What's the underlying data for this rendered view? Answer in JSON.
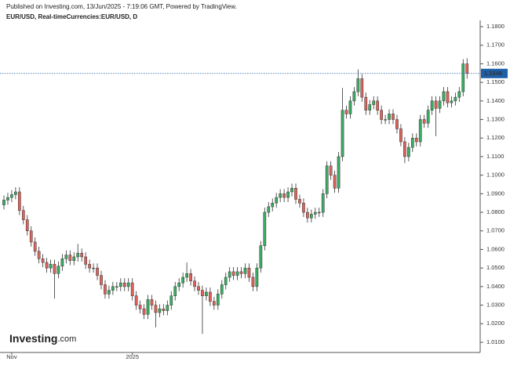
{
  "chart_data": {
    "type": "candlestick",
    "header": "Published on Investing.com, 13/Jun/2025 - 7:19:06 GMT, Powered by TradingView.",
    "title": "EUR/USD, Real-timeCurrencies:EUR/USD, D",
    "logo": {
      "brand": "Investing",
      "suffix": ".com"
    },
    "up_color": "#3aae63",
    "down_color": "#e0625a",
    "outline_color": "#333333",
    "price_line": {
      "value": 1.1548,
      "label": "1.1548",
      "color": "#1f5fa8"
    },
    "ylim": [
      1.0045,
      1.1834
    ],
    "yticks": [
      {
        "value": 1.01,
        "label": "1.0100"
      },
      {
        "value": 1.02,
        "label": "1.0200"
      },
      {
        "value": 1.03,
        "label": "1.0300"
      },
      {
        "value": 1.04,
        "label": "1.0400"
      },
      {
        "value": 1.05,
        "label": "1.0500"
      },
      {
        "value": 1.06,
        "label": "1.0600"
      },
      {
        "value": 1.07,
        "label": "1.0700"
      },
      {
        "value": 1.08,
        "label": "1.0800"
      },
      {
        "value": 1.09,
        "label": "1.0900"
      },
      {
        "value": 1.1,
        "label": "1.1000"
      },
      {
        "value": 1.11,
        "label": "1.1100"
      },
      {
        "value": 1.12,
        "label": "1.1200"
      },
      {
        "value": 1.13,
        "label": "1.1300"
      },
      {
        "value": 1.14,
        "label": "1.1400"
      },
      {
        "value": 1.15,
        "label": "1.1500"
      },
      {
        "value": 1.16,
        "label": "1.1600"
      },
      {
        "value": 1.17,
        "label": "1.1700"
      },
      {
        "value": 1.18,
        "label": "1.1800"
      }
    ],
    "categories": [
      null,
      null,
      "Nov",
      null,
      null,
      null,
      null,
      null,
      null,
      null,
      null,
      null,
      null,
      null,
      null,
      null,
      null,
      null,
      null,
      null,
      null,
      null,
      null,
      null,
      null,
      null,
      null,
      null,
      null,
      null,
      null,
      null,
      null,
      "2025",
      null,
      null,
      null,
      null,
      null,
      null,
      null,
      null,
      null,
      null,
      null,
      null,
      null,
      null,
      null,
      null,
      null,
      null,
      null,
      null,
      null,
      null,
      null,
      null,
      null,
      null,
      null,
      null,
      null,
      null,
      null,
      null,
      null,
      null,
      null,
      null,
      null,
      null,
      null,
      null,
      null,
      null,
      null,
      null,
      null,
      null,
      null,
      null,
      null,
      null,
      null,
      null,
      null,
      null,
      null,
      null,
      null,
      null,
      null,
      null,
      null,
      null,
      null,
      null,
      null,
      null,
      null,
      null,
      null,
      null,
      null,
      null,
      null,
      null,
      null,
      null,
      null,
      null,
      null,
      null,
      null,
      null,
      null,
      null,
      null,
      null
    ],
    "open": [
      1.084,
      1.0866,
      1.088,
      1.0895,
      1.091,
      1.081,
      1.076,
      1.07,
      1.064,
      1.059,
      1.055,
      1.053,
      1.05,
      1.052,
      1.047,
      1.051,
      1.055,
      1.057,
      1.054,
      1.056,
      1.058,
      1.056,
      1.052,
      1.05,
      1.05,
      1.046,
      1.041,
      1.036,
      1.038,
      1.04,
      1.04,
      1.042,
      1.04,
      1.042,
      1.035,
      1.03,
      1.028,
      1.025,
      1.033,
      1.03,
      1.026,
      1.028,
      1.027,
      1.03,
      1.035,
      1.04,
      1.042,
      1.045,
      1.047,
      1.043,
      1.04,
      1.038,
      1.035,
      1.037,
      1.032,
      1.03,
      1.036,
      1.041,
      1.045,
      1.048,
      1.046,
      1.048,
      1.047,
      1.05,
      1.045,
      1.04,
      1.05,
      1.062,
      1.08,
      1.083,
      1.085,
      1.088,
      1.09,
      1.088,
      1.091,
      1.093,
      1.087,
      1.085,
      1.08,
      1.077,
      1.079,
      1.08,
      1.08,
      1.09,
      1.105,
      1.1,
      1.093,
      1.11,
      1.135,
      1.133,
      1.14,
      1.145,
      1.152,
      1.142,
      1.135,
      1.138,
      1.14,
      1.135,
      1.13,
      1.13,
      1.133,
      1.13,
      1.125,
      1.118,
      1.11,
      1.115,
      1.12,
      1.118,
      1.13,
      1.128,
      1.135,
      1.14,
      1.136,
      1.14,
      1.145,
      1.139,
      1.14,
      1.142,
      1.145,
      1.16
    ],
    "high": [
      1.0891,
      1.0905,
      1.092,
      1.0935,
      1.0935,
      1.0835,
      1.0785,
      1.0725,
      1.0665,
      1.0615,
      1.0575,
      1.0555,
      1.0545,
      1.0545,
      1.0535,
      1.0575,
      1.0595,
      1.0595,
      1.0585,
      1.063,
      1.0605,
      1.0585,
      1.0545,
      1.0525,
      1.0525,
      1.0485,
      1.0435,
      1.0405,
      1.0425,
      1.0425,
      1.0445,
      1.0445,
      1.0445,
      1.0445,
      1.0375,
      1.0325,
      1.0305,
      1.0355,
      1.0355,
      1.0325,
      1.0305,
      1.0305,
      1.0325,
      1.0375,
      1.0425,
      1.0445,
      1.0475,
      1.053,
      1.0495,
      1.0455,
      1.0425,
      1.0405,
      1.0395,
      1.0395,
      1.0345,
      1.0385,
      1.0435,
      1.0475,
      1.0505,
      1.0505,
      1.0505,
      1.0505,
      1.0525,
      1.0525,
      1.0475,
      1.0525,
      1.0645,
      1.0825,
      1.0855,
      1.0875,
      1.0905,
      1.0925,
      1.0925,
      1.0935,
      1.0955,
      1.0955,
      1.0895,
      1.0875,
      1.0825,
      1.0815,
      1.0825,
      1.0825,
      1.0925,
      1.1075,
      1.1075,
      1.1025,
      1.1125,
      1.147,
      1.1375,
      1.1425,
      1.1475,
      1.157,
      1.1545,
      1.1445,
      1.1405,
      1.1425,
      1.1425,
      1.1375,
      1.1325,
      1.1355,
      1.1355,
      1.1325,
      1.1275,
      1.1205,
      1.1175,
      1.1225,
      1.1225,
      1.1325,
      1.1325,
      1.1375,
      1.1425,
      1.1425,
      1.1425,
      1.1475,
      1.1475,
      1.1425,
      1.1445,
      1.1475,
      1.1625,
      1.163
    ],
    "low": [
      1.0815,
      1.0841,
      1.0855,
      1.087,
      1.0785,
      1.0735,
      1.0675,
      1.0615,
      1.0565,
      1.0525,
      1.0505,
      1.0475,
      1.0475,
      1.0335,
      1.0445,
      1.0485,
      1.0525,
      1.0515,
      1.0515,
      1.0535,
      1.0535,
      1.0495,
      1.0475,
      1.0475,
      1.0435,
      1.0385,
      1.0335,
      1.0335,
      1.0355,
      1.0375,
      1.0375,
      1.0375,
      1.0375,
      1.0325,
      1.0275,
      1.0255,
      1.0225,
      1.0225,
      1.0275,
      1.018,
      1.0235,
      1.0245,
      1.0245,
      1.0275,
      1.0325,
      1.0375,
      1.0395,
      1.0425,
      1.0405,
      1.0375,
      1.0355,
      1.0145,
      1.0325,
      1.0295,
      1.0275,
      1.0275,
      1.0335,
      1.0385,
      1.0425,
      1.0435,
      1.0435,
      1.0445,
      1.0445,
      1.0425,
      1.0375,
      1.0375,
      1.0475,
      1.0595,
      1.0775,
      1.0805,
      1.0825,
      1.0855,
      1.0855,
      1.0855,
      1.0885,
      1.0845,
      1.0825,
      1.0775,
      1.0745,
      1.0745,
      1.0765,
      1.0775,
      1.0775,
      1.0875,
      1.0975,
      1.0905,
      1.0905,
      1.1075,
      1.1305,
      1.1305,
      1.1375,
      1.1425,
      1.1395,
      1.1325,
      1.1325,
      1.1355,
      1.1325,
      1.1275,
      1.1275,
      1.1275,
      1.1275,
      1.1225,
      1.1155,
      1.1065,
      1.1075,
      1.1125,
      1.1155,
      1.1155,
      1.1255,
      1.1255,
      1.1325,
      1.121,
      1.1335,
      1.1375,
      1.1365,
      1.1365,
      1.1375,
      1.1395,
      1.1425,
      1.152
    ],
    "close": [
      1.0866,
      1.088,
      1.0895,
      1.091,
      1.081,
      1.076,
      1.07,
      1.064,
      1.059,
      1.055,
      1.053,
      1.05,
      1.052,
      1.047,
      1.051,
      1.055,
      1.057,
      1.054,
      1.056,
      1.058,
      1.056,
      1.052,
      1.05,
      1.05,
      1.046,
      1.041,
      1.036,
      1.038,
      1.04,
      1.04,
      1.042,
      1.04,
      1.042,
      1.035,
      1.03,
      1.028,
      1.025,
      1.033,
      1.03,
      1.026,
      1.028,
      1.027,
      1.03,
      1.035,
      1.04,
      1.042,
      1.045,
      1.047,
      1.043,
      1.04,
      1.038,
      1.035,
      1.037,
      1.032,
      1.03,
      1.036,
      1.041,
      1.045,
      1.048,
      1.046,
      1.048,
      1.047,
      1.05,
      1.045,
      1.04,
      1.05,
      1.062,
      1.08,
      1.083,
      1.085,
      1.088,
      1.09,
      1.088,
      1.091,
      1.093,
      1.087,
      1.085,
      1.08,
      1.077,
      1.079,
      1.08,
      1.08,
      1.09,
      1.105,
      1.1,
      1.093,
      1.11,
      1.135,
      1.133,
      1.14,
      1.145,
      1.152,
      1.142,
      1.135,
      1.138,
      1.14,
      1.135,
      1.13,
      1.13,
      1.133,
      1.13,
      1.125,
      1.118,
      1.11,
      1.115,
      1.12,
      1.118,
      1.13,
      1.128,
      1.135,
      1.14,
      1.136,
      1.14,
      1.145,
      1.139,
      1.14,
      1.142,
      1.145,
      1.16,
      1.1548
    ]
  }
}
